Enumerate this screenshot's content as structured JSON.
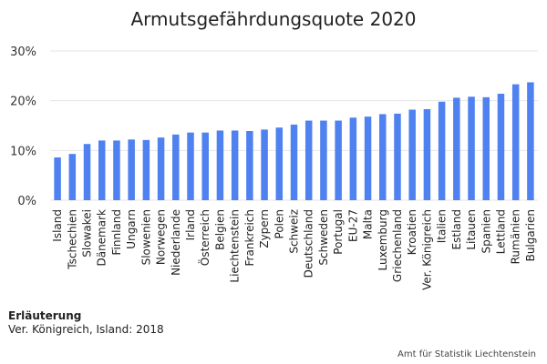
{
  "chart_data": {
    "type": "bar",
    "title": "Armutsgefährdungsquote 2020",
    "categories": [
      "Island",
      "Tschechien",
      "Slowakei",
      "Dänemark",
      "Finnland",
      "Ungarn",
      "Slowenien",
      "Norwegen",
      "Niederlande",
      "Irland",
      "Österreich",
      "Belgien",
      "Liechtenstein",
      "Frankreich",
      "Zypern",
      "Polen",
      "Schweiz",
      "Deutschland",
      "Schweden",
      "Portugal",
      "EU-27",
      "Malta",
      "Luxemburg",
      "Griechenland",
      "Kroatien",
      "Ver. Königreich",
      "Italien",
      "Estland",
      "Litauen",
      "Spanien",
      "Lettland",
      "Rumänien",
      "Bulgarien"
    ],
    "values": [
      8.6,
      9.3,
      11.3,
      12.0,
      12.0,
      12.2,
      12.1,
      12.6,
      13.2,
      13.6,
      13.6,
      14.0,
      14.0,
      13.9,
      14.2,
      14.6,
      15.2,
      16.0,
      16.0,
      16.0,
      16.6,
      16.8,
      17.3,
      17.4,
      18.2,
      18.3,
      19.8,
      20.6,
      20.8,
      20.7,
      21.4,
      23.3,
      23.7
    ],
    "yticks": [
      "0%",
      "10%",
      "20%",
      "30%"
    ],
    "ylim": [
      0,
      30
    ],
    "grid": true,
    "bar_color": "#4f81f0"
  },
  "notes": {
    "heading": "Erläuterung",
    "text": "Ver. Königreich, Island: 2018"
  },
  "source": "Amt für Statistik Liechtenstein"
}
